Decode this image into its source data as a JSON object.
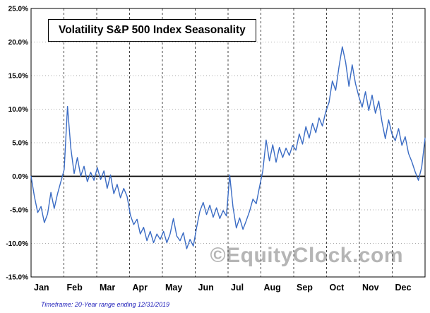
{
  "title_box": {
    "text": "Volatility S&P 500 Index Seasonality"
  },
  "watermark": {
    "text": "©EquityClock.com"
  },
  "footnote": {
    "text": "Timeframe: 20-Year range ending 12/31/2019"
  },
  "chart_data": {
    "type": "line",
    "title": "Volatility S&P 500 Index Seasonality",
    "xlabel": "",
    "ylabel": "",
    "unit": "%",
    "x_categories": [
      "Jan",
      "Feb",
      "Mar",
      "Apr",
      "May",
      "Jun",
      "Jul",
      "Aug",
      "Sep",
      "Oct",
      "Nov",
      "Dec"
    ],
    "y_ticks": [
      25,
      20,
      15,
      10,
      5,
      0,
      -5,
      -10,
      -15
    ],
    "y_tick_labels": [
      "25.0%",
      "20.0%",
      "15.0%",
      "10.0%",
      "5.0%",
      "0.0%",
      "-5.0%",
      "-10.0%",
      "-15.0%"
    ],
    "ylim": [
      -15,
      25
    ],
    "grid": true,
    "legend_position": "none",
    "line_color": "#3b6cc4",
    "zero_line_color": "#000000",
    "series": [
      {
        "name": "Volatility S&P 500 Index Seasonality (20-Year range ending 12/31/2019)",
        "values": [
          0.0,
          -3.0,
          -5.4,
          -4.5,
          -6.9,
          -5.6,
          -2.4,
          -4.8,
          -2.6,
          -0.8,
          1.0,
          10.4,
          4.2,
          0.4,
          2.8,
          0.0,
          1.5,
          -0.8,
          0.6,
          -0.6,
          1.3,
          -0.5,
          0.8,
          -1.8,
          0.2,
          -2.6,
          -1.2,
          -3.2,
          -1.8,
          -3.0,
          -5.8,
          -7.2,
          -6.4,
          -8.6,
          -7.6,
          -9.6,
          -8.2,
          -9.9,
          -8.6,
          -9.4,
          -8.2,
          -9.9,
          -8.6,
          -6.3,
          -8.9,
          -9.6,
          -8.4,
          -10.8,
          -9.4,
          -10.4,
          -7.6,
          -5.2,
          -3.9,
          -5.7,
          -4.3,
          -6.1,
          -4.7,
          -6.3,
          -5.1,
          -5.9,
          0.2,
          -4.6,
          -7.7,
          -6.2,
          -7.9,
          -6.6,
          -5.2,
          -3.4,
          -4.1,
          -1.6,
          0.8,
          5.4,
          2.3,
          4.7,
          2.1,
          4.3,
          2.8,
          4.2,
          3.1,
          4.6,
          3.9,
          6.3,
          4.8,
          7.4,
          5.7,
          7.9,
          6.5,
          8.7,
          7.5,
          9.6,
          11.0,
          14.2,
          12.8,
          16.3,
          19.3,
          17.0,
          13.4,
          16.6,
          13.8,
          11.9,
          10.3,
          12.6,
          9.8,
          12.1,
          9.4,
          11.2,
          8.1,
          5.6,
          8.4,
          6.3,
          5.3,
          7.1,
          4.6,
          5.9,
          3.4,
          2.2,
          0.7,
          -0.6,
          1.4,
          5.7
        ]
      }
    ]
  }
}
